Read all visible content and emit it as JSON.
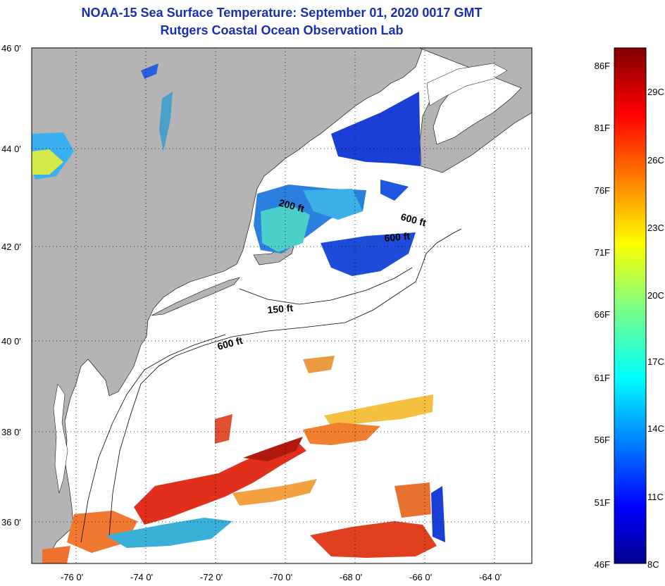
{
  "title": "NOAA-15 Sea Surface Temperature:  September 01, 2020 0017 GMT",
  "subtitle": "Rutgers Coastal Ocean Observation Lab",
  "lat_labels": [
    "46 0'",
    "44 0'",
    "42 0'",
    "40 0'",
    "38 0'",
    "36 0'"
  ],
  "lon_labels": [
    "-76 0'",
    "-74 0'",
    "-72 0'",
    "-70 0'",
    "-68 0'",
    "-66 0'",
    "-64 0'"
  ],
  "depth_labels": [
    "200 ft",
    "600 ft",
    "600 ft",
    "150 ft",
    "600 ft"
  ],
  "colorbar": {
    "fahrenheit": [
      "86F",
      "81F",
      "76F",
      "71F",
      "66F",
      "61F",
      "56F",
      "51F",
      "46F"
    ],
    "celsius": [
      "29C",
      "26C",
      "23C",
      "20C",
      "17C",
      "14C",
      "11C",
      "8C"
    ]
  },
  "colors": {
    "land": "#b4b4b4",
    "ocean": "#ffffff",
    "title": "#1a2fb3"
  }
}
